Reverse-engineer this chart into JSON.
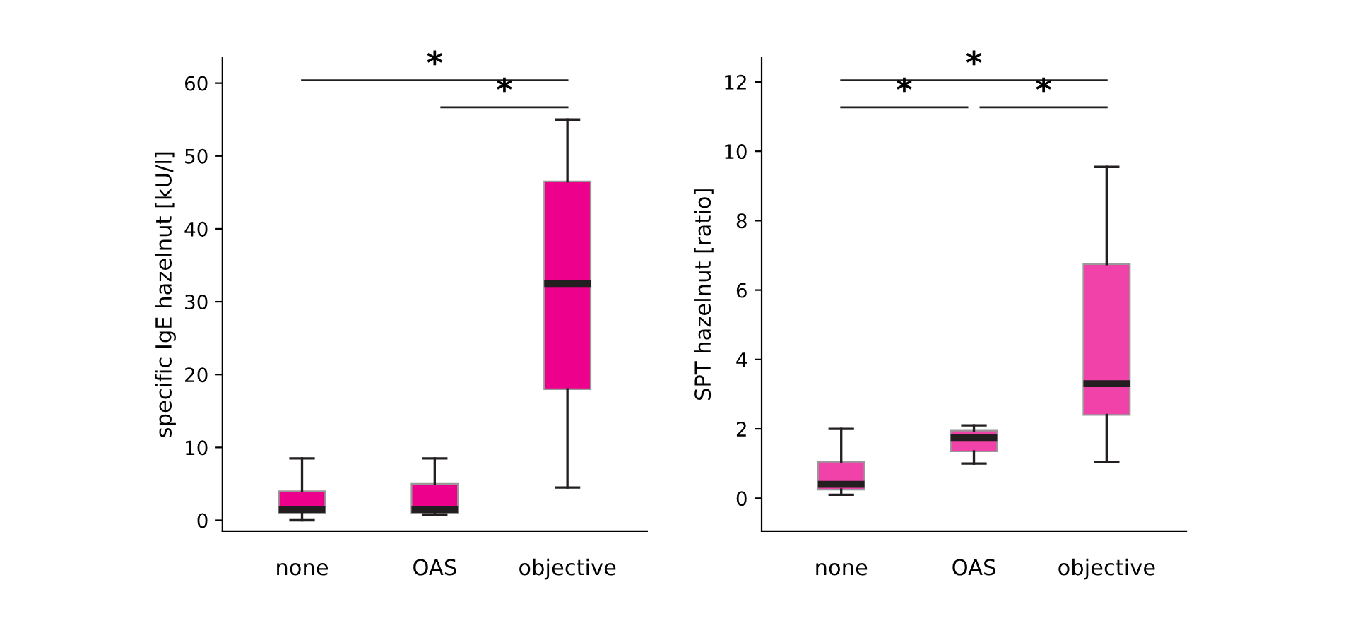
{
  "chart_data": [
    {
      "type": "box",
      "categories": [
        "none",
        "OAS",
        "objective"
      ],
      "ylabel": "specific IgE hazelnut [kU/l]",
      "ylim": [
        -1.5,
        63.5
      ],
      "yticks": [
        0,
        10,
        20,
        30,
        40,
        50,
        60
      ],
      "color": "#ec008c",
      "boxes": [
        {
          "low": 0,
          "q1": 1,
          "median": 1.5,
          "q3": 4,
          "high": 8.5
        },
        {
          "low": 0.8,
          "q1": 1,
          "median": 1.5,
          "q3": 5,
          "high": 8.5
        },
        {
          "low": 4.5,
          "q1": 18,
          "median": 32.5,
          "q3": 46.5,
          "high": 55
        }
      ],
      "annotations": [
        "*",
        "*"
      ]
    },
    {
      "type": "box",
      "categories": [
        "none",
        "OAS",
        "objective"
      ],
      "ylabel": "SPT hazelnut [ratio]",
      "ylim": [
        -0.95,
        12.7
      ],
      "yticks": [
        0,
        2,
        4,
        6,
        8,
        10,
        12
      ],
      "color": "#f042a8",
      "boxes": [
        {
          "low": 0.1,
          "q1": 0.25,
          "median": 0.4,
          "q3": 1.05,
          "high": 2
        },
        {
          "low": 1,
          "q1": 1.35,
          "median": 1.75,
          "q3": 1.95,
          "high": 2.1
        },
        {
          "low": 1.05,
          "q1": 2.4,
          "median": 3.3,
          "q3": 6.75,
          "high": 9.55
        }
      ],
      "annotations": [
        "*",
        "*",
        "*"
      ]
    }
  ]
}
